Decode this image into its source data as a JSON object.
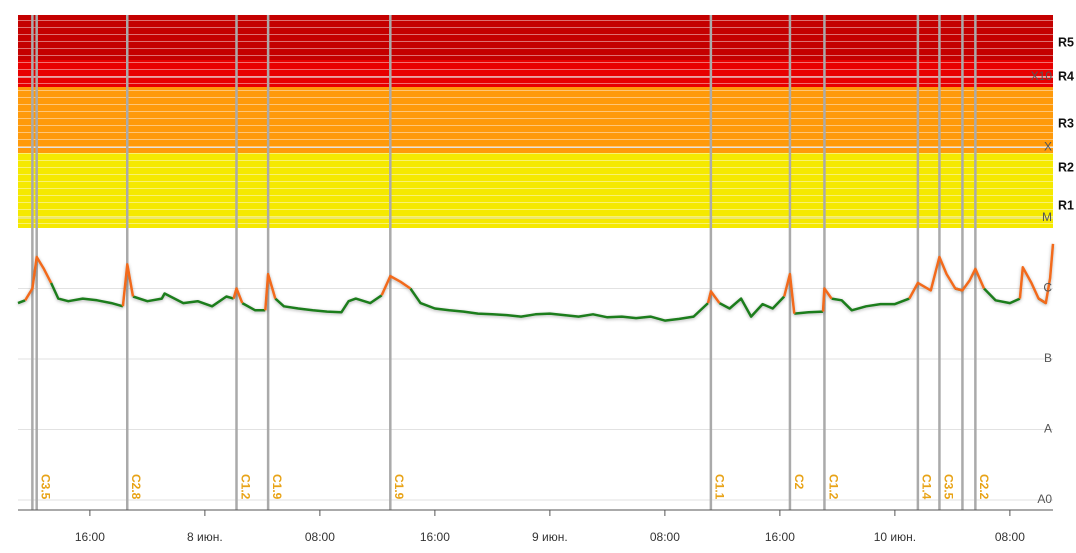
{
  "chart_data": {
    "type": "line",
    "log_y": true,
    "xlim": [
      11,
      83
    ],
    "xticks": [
      {
        "value": 16,
        "label": "16:00"
      },
      {
        "value": 24,
        "label": "8 июн."
      },
      {
        "value": 32,
        "label": "08:00"
      },
      {
        "value": 40,
        "label": "16:00"
      },
      {
        "value": 48,
        "label": "9 июн."
      },
      {
        "value": 56,
        "label": "08:00"
      },
      {
        "value": 64,
        "label": "16:00"
      },
      {
        "value": 72,
        "label": "10 июн."
      },
      {
        "value": 80,
        "label": "08:00"
      }
    ],
    "ylim": [
      7.2e-10,
      0.0076
    ],
    "yticks": [
      {
        "value": 1e-09,
        "label": "A0"
      },
      {
        "value": 1e-08,
        "label": "A"
      },
      {
        "value": 1e-07,
        "label": "B"
      },
      {
        "value": 1e-06,
        "label": "C"
      },
      {
        "value": 1e-05,
        "label": "M"
      },
      {
        "value": 0.0001,
        "label": "X"
      },
      {
        "value": 0.001,
        "label": "X10"
      }
    ],
    "grid": true,
    "scale_labels": [
      "R5",
      "R4",
      "R3",
      "R2",
      "R1"
    ],
    "x": [
      11,
      11.5,
      12,
      12.3,
      12.8,
      13.3,
      13.8,
      14.5,
      15.5,
      16.5,
      17.5,
      18.3,
      18.6,
      19,
      20,
      21,
      21.2,
      22.5,
      23.5,
      24.5,
      25.5,
      26,
      26.2,
      26.6,
      27.5,
      28.2,
      28.4,
      28.9,
      29.5,
      30.5,
      31.5,
      32.5,
      33.5,
      34,
      34.5,
      35.5,
      36.3,
      36.9,
      37.6,
      38.3,
      39,
      40,
      41,
      42,
      43,
      44,
      45,
      46,
      47,
      48,
      49,
      50,
      51,
      52,
      53,
      54,
      55,
      56,
      57,
      58,
      59,
      59.2,
      59.8,
      60.5,
      61.3,
      62,
      62.8,
      63.5,
      64.3,
      64.7,
      65,
      66,
      67,
      67.1,
      67.6,
      68.3,
      69,
      70,
      71,
      72,
      73,
      73.6,
      74.5,
      75.1,
      75.6,
      76.2,
      76.7,
      77.2,
      77.6,
      78.2,
      79,
      80,
      80.7,
      80.9,
      81.5,
      82,
      82.5,
      82.8,
      83
    ],
    "series": [
      {
        "color": "#1e7d1e",
        "values": [
          6.2e-07,
          6.8e-07,
          null,
          null,
          null,
          1.2e-06,
          7.2e-07,
          6.6e-07,
          7.2e-07,
          6.8e-07,
          6.2e-07,
          5.6e-07,
          null,
          7.7e-07,
          6.6e-07,
          7.2e-07,
          8.5e-07,
          6.2e-07,
          6.6e-07,
          5.6e-07,
          7.7e-07,
          7.2e-07,
          null,
          6.2e-07,
          4.9e-07,
          4.9e-07,
          null,
          7.2e-07,
          5.6e-07,
          5.2e-07,
          4.9e-07,
          4.7e-07,
          4.6e-07,
          6.6e-07,
          7.2e-07,
          6.2e-07,
          8e-07,
          null,
          null,
          1e-06,
          6.2e-07,
          5.2e-07,
          4.9e-07,
          4.7e-07,
          4.4e-07,
          4.3e-07,
          4.2e-07,
          4e-07,
          4.3e-07,
          4.4e-07,
          4.2e-07,
          4e-07,
          4.3e-07,
          3.9e-07,
          4e-07,
          3.8e-07,
          4e-07,
          3.5e-07,
          3.7e-07,
          4e-07,
          6.2e-07,
          null,
          6.2e-07,
          5.2e-07,
          7.2e-07,
          4e-07,
          6e-07,
          5.2e-07,
          7.7e-07,
          null,
          4.4e-07,
          4.6e-07,
          4.7e-07,
          null,
          7.2e-07,
          6.8e-07,
          4.9e-07,
          5.6e-07,
          6e-07,
          6e-07,
          7.2e-07,
          null,
          null,
          null,
          null,
          1e-06,
          9.4e-07,
          null,
          null,
          1e-06,
          6.8e-07,
          6.2e-07,
          7.2e-07,
          null,
          null,
          7.2e-07,
          6.2e-07,
          null,
          null
        ]
      },
      {
        "color": "#f26a1b",
        "values": [
          null,
          6.8e-07,
          1e-06,
          2.8e-06,
          1.9e-06,
          1.2e-06,
          null,
          null,
          null,
          null,
          null,
          5.6e-07,
          2.2e-06,
          7.7e-07,
          null,
          null,
          null,
          null,
          null,
          null,
          null,
          7.2e-07,
          1e-06,
          6.2e-07,
          null,
          4.9e-07,
          1.6e-06,
          7.2e-07,
          null,
          null,
          null,
          null,
          null,
          null,
          null,
          null,
          8e-07,
          1.5e-06,
          1.25e-06,
          1e-06,
          null,
          null,
          null,
          null,
          null,
          null,
          null,
          null,
          null,
          null,
          null,
          null,
          null,
          null,
          null,
          null,
          null,
          null,
          null,
          null,
          6.2e-07,
          9.1e-07,
          6.2e-07,
          null,
          null,
          null,
          null,
          null,
          7.7e-07,
          1.6e-06,
          4.4e-07,
          null,
          4.7e-07,
          1e-06,
          7.2e-07,
          null,
          null,
          null,
          null,
          null,
          7.2e-07,
          1.2e-06,
          9.4e-07,
          2.8e-06,
          1.6e-06,
          1e-06,
          9.4e-07,
          1.3e-06,
          1.9e-06,
          1e-06,
          null,
          null,
          7.2e-07,
          2e-06,
          1.2e-06,
          7.2e-07,
          6.2e-07,
          1.4e-06,
          4.3e-06
        ]
      }
    ],
    "flares": [
      {
        "x": 12.3,
        "label": "C3.5"
      },
      {
        "x": 18.6,
        "label": "C2.8"
      },
      {
        "x": 26.2,
        "label": "C1.2"
      },
      {
        "x": 28.4,
        "label": "C1.9"
      },
      {
        "x": 36.9,
        "label": "C1.9"
      },
      {
        "x": 59.2,
        "label": "C1.1"
      },
      {
        "x": 64.7,
        "label": "C2"
      },
      {
        "x": 67.1,
        "label": "C1.2"
      },
      {
        "x": 73.6,
        "label": "C1.4"
      },
      {
        "x": 75.1,
        "label": "C3.5"
      },
      {
        "x": 77.6,
        "label": "C2.2"
      }
    ],
    "markers": [
      12.0,
      76.7
    ]
  }
}
